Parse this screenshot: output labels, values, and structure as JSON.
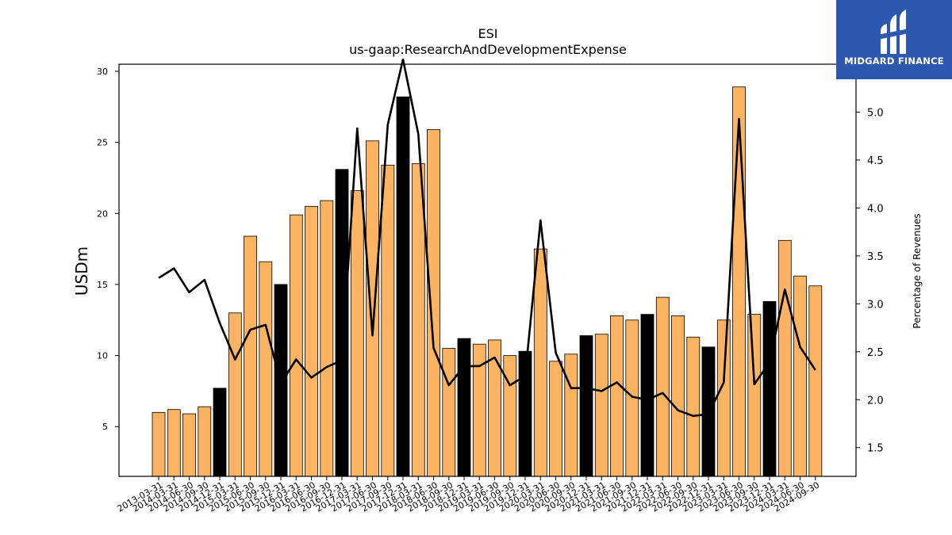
{
  "chart_data": {
    "type": "bar",
    "title": "ESI",
    "subtitle": "us-gaap:ResearchAndDevelopmentExpense",
    "ylabel": "USDm",
    "y2label": "Percentage of Revenues",
    "ylim": [
      1.5,
      30.5
    ],
    "y2lim": [
      1.2,
      5.5
    ],
    "yticks": [
      5,
      10,
      15,
      20,
      25,
      30
    ],
    "y2ticks": [
      1.5,
      2.0,
      2.5,
      3.0,
      3.5,
      4.0,
      4.5,
      5.0
    ],
    "y2tick_labels": [
      "1.5",
      "2.0",
      "2.5",
      "3.0",
      "3.5",
      "4.0",
      "4.5",
      "5.0"
    ],
    "categories": [
      "2013-03-31",
      "2014-03-31",
      "2014-06-30",
      "2014-09-30",
      "2014-12-31",
      "2015-03-31",
      "2015-06-30",
      "2015-09-30",
      "2015-12-31",
      "2016-03-31",
      "2016-06-30",
      "2016-09-30",
      "2016-12-31",
      "2017-03-31",
      "2017-06-30",
      "2017-09-30",
      "2017-12-31",
      "2018-03-31",
      "2018-06-30",
      "2018-09-30",
      "2018-12-31",
      "2019-03-31",
      "2019-06-30",
      "2019-09-30",
      "2019-12-31",
      "2020-03-31",
      "2020-06-30",
      "2020-09-30",
      "2020-12-31",
      "2021-03-31",
      "2021-06-30",
      "2021-09-30",
      "2021-12-31",
      "2022-03-31",
      "2022-06-30",
      "2022-09-30",
      "2022-12-31",
      "2023-03-31",
      "2023-06-30",
      "2023-09-30",
      "2023-12-31",
      "2024-03-31",
      "2024-06-30",
      "2024-09-30"
    ],
    "series": [
      {
        "type": "bar",
        "values": [
          6.0,
          6.2,
          5.9,
          6.4,
          7.7,
          13.0,
          18.4,
          16.6,
          15.0,
          19.9,
          20.5,
          20.9,
          23.1,
          21.6,
          25.1,
          23.4,
          28.2,
          23.5,
          25.9,
          10.5,
          11.2,
          10.8,
          11.1,
          10.0,
          10.3,
          17.5,
          9.6,
          10.1,
          11.4,
          11.5,
          12.8,
          12.5,
          12.9,
          14.1,
          12.8,
          11.3,
          10.6,
          12.5,
          28.9,
          12.9,
          13.8,
          18.1,
          15.6,
          14.9
        ],
        "highlight": [
          false,
          false,
          false,
          false,
          true,
          false,
          false,
          false,
          true,
          false,
          false,
          false,
          true,
          false,
          false,
          false,
          true,
          false,
          false,
          false,
          true,
          false,
          false,
          false,
          true,
          false,
          false,
          false,
          true,
          false,
          false,
          false,
          true,
          false,
          false,
          false,
          true,
          false,
          false,
          false,
          true,
          false,
          false,
          false
        ],
        "color": "#fdb462",
        "highlight_color": "#000000"
      },
      {
        "type": "line",
        "axis": "right",
        "values": [
          3.27,
          3.37,
          3.12,
          3.25,
          2.8,
          2.42,
          2.73,
          2.78,
          2.17,
          2.42,
          2.23,
          2.34,
          2.41,
          4.83,
          2.67,
          4.87,
          5.55,
          4.77,
          2.54,
          2.15,
          2.35,
          2.35,
          2.44,
          2.15,
          2.25,
          3.87,
          2.49,
          2.12,
          2.12,
          2.09,
          2.18,
          2.03,
          2.0,
          2.07,
          1.89,
          1.83,
          1.85,
          2.18,
          4.93,
          2.16,
          2.39,
          3.15,
          2.55,
          2.31
        ],
        "color": "#000000"
      }
    ]
  },
  "logo": {
    "text": "MIDGARD FINANCE",
    "bg": "#2c58b0"
  }
}
